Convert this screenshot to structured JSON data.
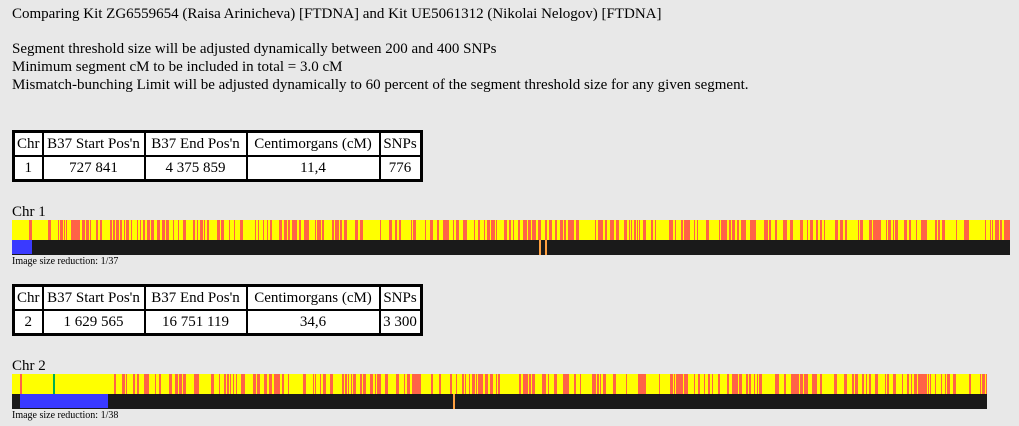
{
  "header": {
    "comparison_title": "Comparing Kit ZG6559654 (Raisa Arinicheva) [FTDNA] and Kit UE5061312 (Nikolai Nelogov) [FTDNA]",
    "lines": [
      "Segment threshold size will be adjusted dynamically between 200 and 400 SNPs",
      "Minimum segment cM to be included in total = 3.0 cM",
      "Mismatch-bunching Limit will be adjusted dynamically to 60 percent of the segment threshold size for any given segment."
    ]
  },
  "columns": [
    "Chr",
    "B37 Start Pos'n",
    "B37 End Pos'n",
    "Centimorgans (cM)",
    "SNPs"
  ],
  "segments": [
    {
      "chr": "1",
      "start": "727 841",
      "end": "4 375 859",
      "cm": "11,4",
      "snps": "776",
      "bar_label": "Chr 1",
      "reduction": "Image size reduction: 1/37",
      "match_fraction": 0.02,
      "solid_yellow_fraction": 0.0
    },
    {
      "chr": "2",
      "start": "1 629 565",
      "end": "16 751 119",
      "cm": "34,6",
      "snps": "3 300",
      "bar_label": "Chr 2",
      "reduction": "Image size reduction: 1/38",
      "match_fraction": 0.09,
      "solid_yellow_fraction": 0.09
    }
  ],
  "colors": {
    "background": "#e8e8e8",
    "full_match": "#ffff00",
    "half_match": "#ff6347",
    "no_match_track": "#1a1a1a",
    "segment_highlight": "#3a3aff",
    "marker_green": "#00b050",
    "marker_orange": "#ffa040"
  }
}
